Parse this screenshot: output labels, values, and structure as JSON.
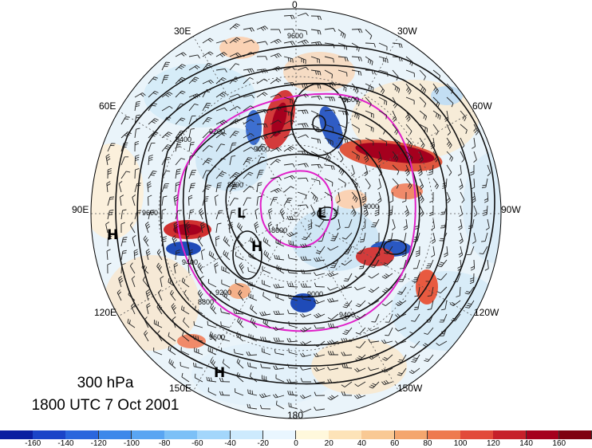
{
  "map": {
    "projection": "north-polar-stereographic",
    "longitude_labels": {
      "top": "0",
      "top_left": "30E",
      "top_right": "30W",
      "upper_left": "60E",
      "upper_right": "60W",
      "left": "90E",
      "right": "90W",
      "lower_left": "120E",
      "lower_right": "120W",
      "bottom_left": "150E",
      "bottom_right": "150W",
      "bottom": "180"
    },
    "contour_labels": [
      "9600",
      "9600",
      "9400",
      "9200",
      "9000",
      "8800",
      "9000",
      "8600",
      "9600",
      "9400",
      "9200",
      "9000",
      "8800",
      "9400",
      "9600"
    ],
    "pressure_systems": [
      {
        "label": "H"
      },
      {
        "label": "L"
      },
      {
        "label": "H"
      },
      {
        "label": "L"
      },
      {
        "label": "H"
      }
    ],
    "overlay_color": "#e020c8",
    "positive_color": "#b2182b",
    "negative_color": "#2166ac"
  },
  "title": {
    "level": "300 hPa",
    "time": "1800 UTC 7 Oct 2001"
  },
  "colorbar": {
    "tick_labels": [
      "-160",
      "-140",
      "-120",
      "-100",
      "-80",
      "-60",
      "-40",
      "-20",
      "0",
      "20",
      "40",
      "60",
      "80",
      "100",
      "120",
      "140",
      "160"
    ],
    "colors": [
      "#0a1fa0",
      "#1a44c8",
      "#2a66dd",
      "#3d88ea",
      "#5aa5f2",
      "#7cc0f7",
      "#a3d6fb",
      "#cdeafd",
      "#e9f6ff",
      "#fff8dc",
      "#fde3b8",
      "#f9c994",
      "#f4a66e",
      "#ee7a4f",
      "#e24a3a",
      "#c6202a",
      "#a5001e",
      "#7f000f"
    ]
  }
}
